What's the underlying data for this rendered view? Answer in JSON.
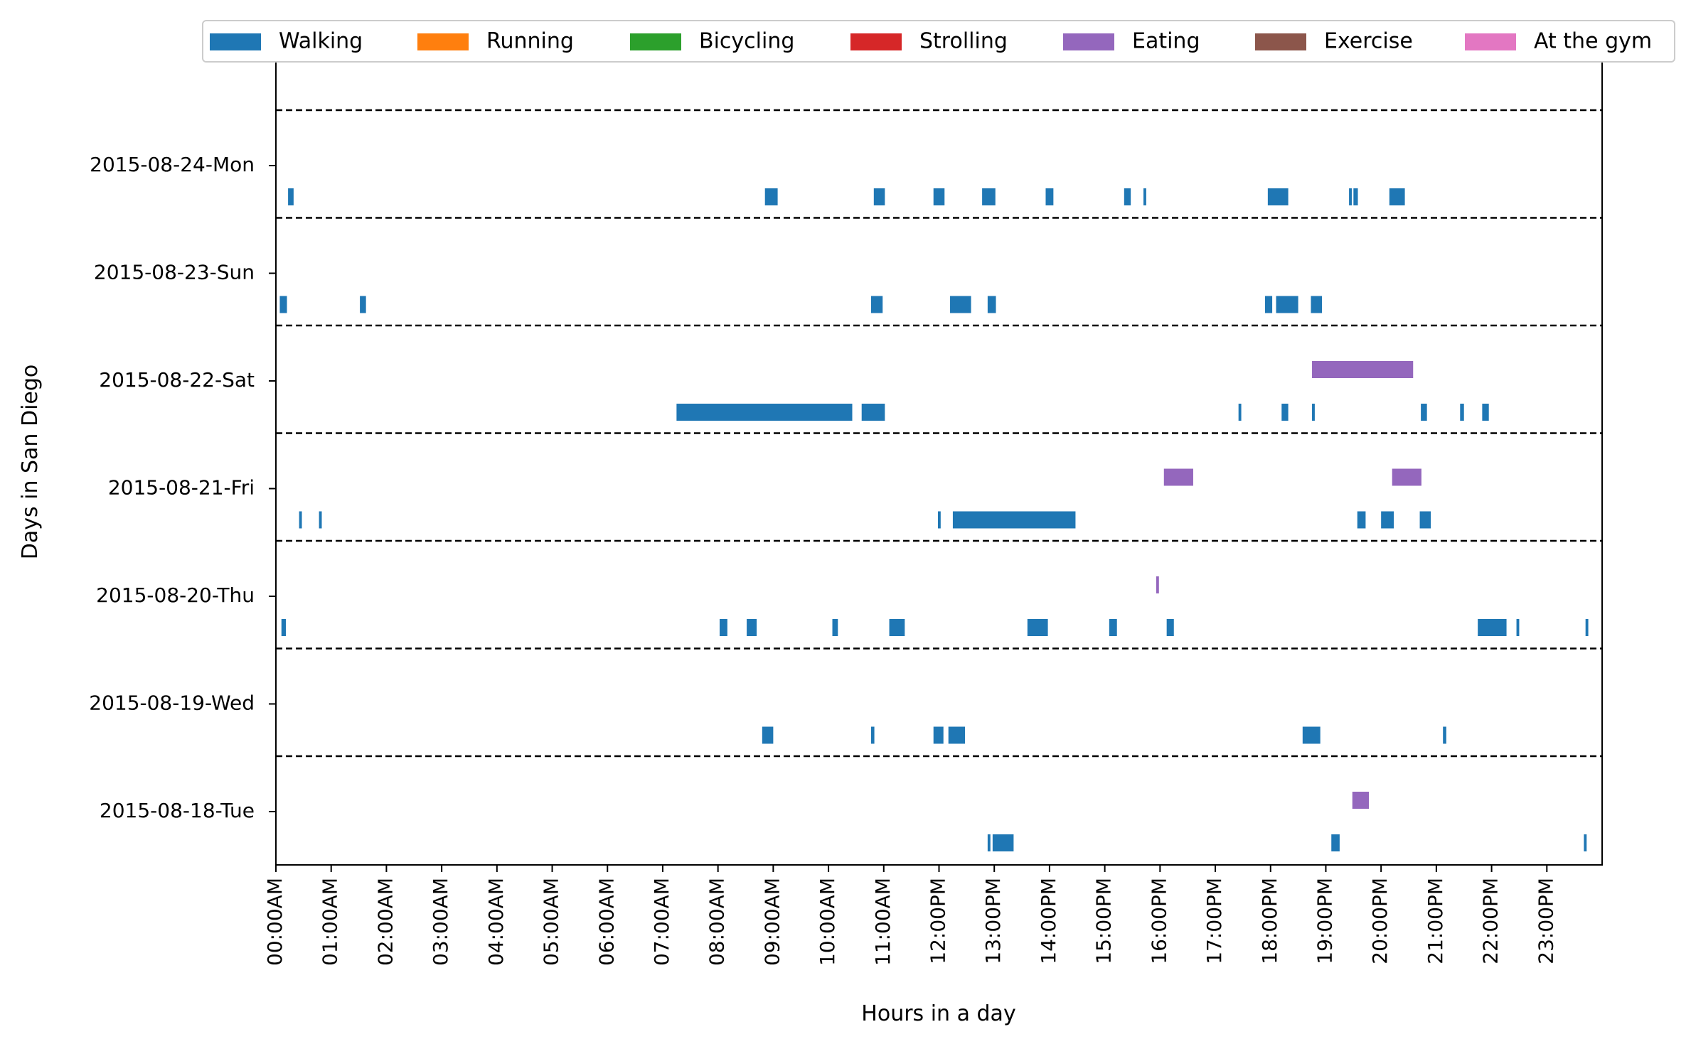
{
  "chart_data": {
    "type": "timeline",
    "xlabel": "Hours in a day",
    "ylabel": "Days in San Diego",
    "x_ticks": [
      "00:00AM",
      "01:00AM",
      "02:00AM",
      "03:00AM",
      "04:00AM",
      "05:00AM",
      "06:00AM",
      "07:00AM",
      "08:00AM",
      "09:00AM",
      "10:00AM",
      "11:00AM",
      "12:00PM",
      "13:00PM",
      "14:00PM",
      "15:00PM",
      "16:00PM",
      "17:00PM",
      "18:00PM",
      "19:00PM",
      "20:00PM",
      "21:00PM",
      "22:00PM",
      "23:00PM"
    ],
    "xlim_hours": [
      0,
      24
    ],
    "days": [
      "2015-08-24-Mon",
      "2015-08-23-Sun",
      "2015-08-22-Sat",
      "2015-08-21-Fri",
      "2015-08-20-Thu",
      "2015-08-19-Wed",
      "2015-08-18-Tue"
    ],
    "legend": [
      {
        "name": "Walking",
        "color": "#1f77b4"
      },
      {
        "name": "Running",
        "color": "#ff7f0e"
      },
      {
        "name": "Bicycling",
        "color": "#2ca02c"
      },
      {
        "name": "Strolling",
        "color": "#d62728"
      },
      {
        "name": "Eating",
        "color": "#9467bd"
      },
      {
        "name": "Exercise",
        "color": "#8c564b"
      },
      {
        "name": "At the gym",
        "color": "#e377c2"
      }
    ],
    "legend_placement": "top",
    "grid": false,
    "day_separators": "dashed",
    "series": [
      {
        "name": "Walking",
        "color": "#1f77b4",
        "intervals": [
          {
            "day": "2015-08-24-Mon",
            "start": 0.22,
            "end": 0.32
          },
          {
            "day": "2015-08-24-Mon",
            "start": 8.85,
            "end": 9.08
          },
          {
            "day": "2015-08-24-Mon",
            "start": 10.82,
            "end": 11.02
          },
          {
            "day": "2015-08-24-Mon",
            "start": 11.9,
            "end": 12.1
          },
          {
            "day": "2015-08-24-Mon",
            "start": 12.78,
            "end": 13.02
          },
          {
            "day": "2015-08-24-Mon",
            "start": 13.93,
            "end": 14.07
          },
          {
            "day": "2015-08-24-Mon",
            "start": 15.35,
            "end": 15.47
          },
          {
            "day": "2015-08-24-Mon",
            "start": 15.7,
            "end": 15.75
          },
          {
            "day": "2015-08-24-Mon",
            "start": 17.95,
            "end": 18.32
          },
          {
            "day": "2015-08-24-Mon",
            "start": 19.42,
            "end": 19.47
          },
          {
            "day": "2015-08-24-Mon",
            "start": 19.5,
            "end": 19.58
          },
          {
            "day": "2015-08-24-Mon",
            "start": 20.15,
            "end": 20.43
          },
          {
            "day": "2015-08-23-Sun",
            "start": 0.07,
            "end": 0.2
          },
          {
            "day": "2015-08-23-Sun",
            "start": 1.52,
            "end": 1.63
          },
          {
            "day": "2015-08-23-Sun",
            "start": 10.77,
            "end": 10.98
          },
          {
            "day": "2015-08-23-Sun",
            "start": 12.2,
            "end": 12.58
          },
          {
            "day": "2015-08-23-Sun",
            "start": 12.88,
            "end": 13.03
          },
          {
            "day": "2015-08-23-Sun",
            "start": 17.9,
            "end": 18.03
          },
          {
            "day": "2015-08-23-Sun",
            "start": 18.1,
            "end": 18.5
          },
          {
            "day": "2015-08-23-Sun",
            "start": 18.73,
            "end": 18.93
          },
          {
            "day": "2015-08-22-Sat",
            "start": 7.25,
            "end": 10.43
          },
          {
            "day": "2015-08-22-Sat",
            "start": 10.6,
            "end": 11.02
          },
          {
            "day": "2015-08-22-Sat",
            "start": 17.42,
            "end": 17.47
          },
          {
            "day": "2015-08-22-Sat",
            "start": 18.2,
            "end": 18.32
          },
          {
            "day": "2015-08-22-Sat",
            "start": 18.75,
            "end": 18.8
          },
          {
            "day": "2015-08-22-Sat",
            "start": 20.72,
            "end": 20.83
          },
          {
            "day": "2015-08-22-Sat",
            "start": 21.43,
            "end": 21.5
          },
          {
            "day": "2015-08-22-Sat",
            "start": 21.83,
            "end": 21.95
          },
          {
            "day": "2015-08-21-Fri",
            "start": 0.42,
            "end": 0.47
          },
          {
            "day": "2015-08-21-Fri",
            "start": 0.78,
            "end": 0.83
          },
          {
            "day": "2015-08-21-Fri",
            "start": 11.98,
            "end": 12.03
          },
          {
            "day": "2015-08-21-Fri",
            "start": 12.25,
            "end": 14.47
          },
          {
            "day": "2015-08-21-Fri",
            "start": 19.57,
            "end": 19.72
          },
          {
            "day": "2015-08-21-Fri",
            "start": 20.0,
            "end": 20.23
          },
          {
            "day": "2015-08-21-Fri",
            "start": 20.7,
            "end": 20.9
          },
          {
            "day": "2015-08-20-Thu",
            "start": 0.1,
            "end": 0.18
          },
          {
            "day": "2015-08-20-Thu",
            "start": 8.03,
            "end": 8.17
          },
          {
            "day": "2015-08-20-Thu",
            "start": 8.52,
            "end": 8.7
          },
          {
            "day": "2015-08-20-Thu",
            "start": 10.07,
            "end": 10.17
          },
          {
            "day": "2015-08-20-Thu",
            "start": 11.1,
            "end": 11.38
          },
          {
            "day": "2015-08-20-Thu",
            "start": 13.6,
            "end": 13.97
          },
          {
            "day": "2015-08-20-Thu",
            "start": 15.08,
            "end": 15.22
          },
          {
            "day": "2015-08-20-Thu",
            "start": 16.12,
            "end": 16.25
          },
          {
            "day": "2015-08-20-Thu",
            "start": 21.75,
            "end": 22.27
          },
          {
            "day": "2015-08-20-Thu",
            "start": 22.45,
            "end": 22.5
          },
          {
            "day": "2015-08-20-Thu",
            "start": 23.7,
            "end": 23.75
          },
          {
            "day": "2015-08-19-Wed",
            "start": 8.8,
            "end": 9.0
          },
          {
            "day": "2015-08-19-Wed",
            "start": 10.77,
            "end": 10.83
          },
          {
            "day": "2015-08-19-Wed",
            "start": 11.9,
            "end": 12.08
          },
          {
            "day": "2015-08-19-Wed",
            "start": 12.17,
            "end": 12.47
          },
          {
            "day": "2015-08-19-Wed",
            "start": 18.58,
            "end": 18.9
          },
          {
            "day": "2015-08-19-Wed",
            "start": 21.12,
            "end": 21.18
          },
          {
            "day": "2015-08-18-Tue",
            "start": 12.88,
            "end": 12.93
          },
          {
            "day": "2015-08-18-Tue",
            "start": 12.97,
            "end": 13.35
          },
          {
            "day": "2015-08-18-Tue",
            "start": 19.1,
            "end": 19.25
          },
          {
            "day": "2015-08-18-Tue",
            "start": 23.67,
            "end": 23.72
          }
        ]
      },
      {
        "name": "Running",
        "color": "#ff7f0e",
        "intervals": []
      },
      {
        "name": "Bicycling",
        "color": "#2ca02c",
        "intervals": []
      },
      {
        "name": "Strolling",
        "color": "#d62728",
        "intervals": []
      },
      {
        "name": "Eating",
        "color": "#9467bd",
        "intervals": [
          {
            "day": "2015-08-22-Sat",
            "start": 18.75,
            "end": 20.58
          },
          {
            "day": "2015-08-21-Fri",
            "start": 16.07,
            "end": 16.6
          },
          {
            "day": "2015-08-21-Fri",
            "start": 20.2,
            "end": 20.73
          },
          {
            "day": "2015-08-20-Thu",
            "start": 15.93,
            "end": 15.98
          },
          {
            "day": "2015-08-18-Tue",
            "start": 19.48,
            "end": 19.78
          }
        ]
      },
      {
        "name": "Exercise",
        "color": "#8c564b",
        "intervals": []
      },
      {
        "name": "At the gym",
        "color": "#e377c2",
        "intervals": []
      }
    ]
  }
}
